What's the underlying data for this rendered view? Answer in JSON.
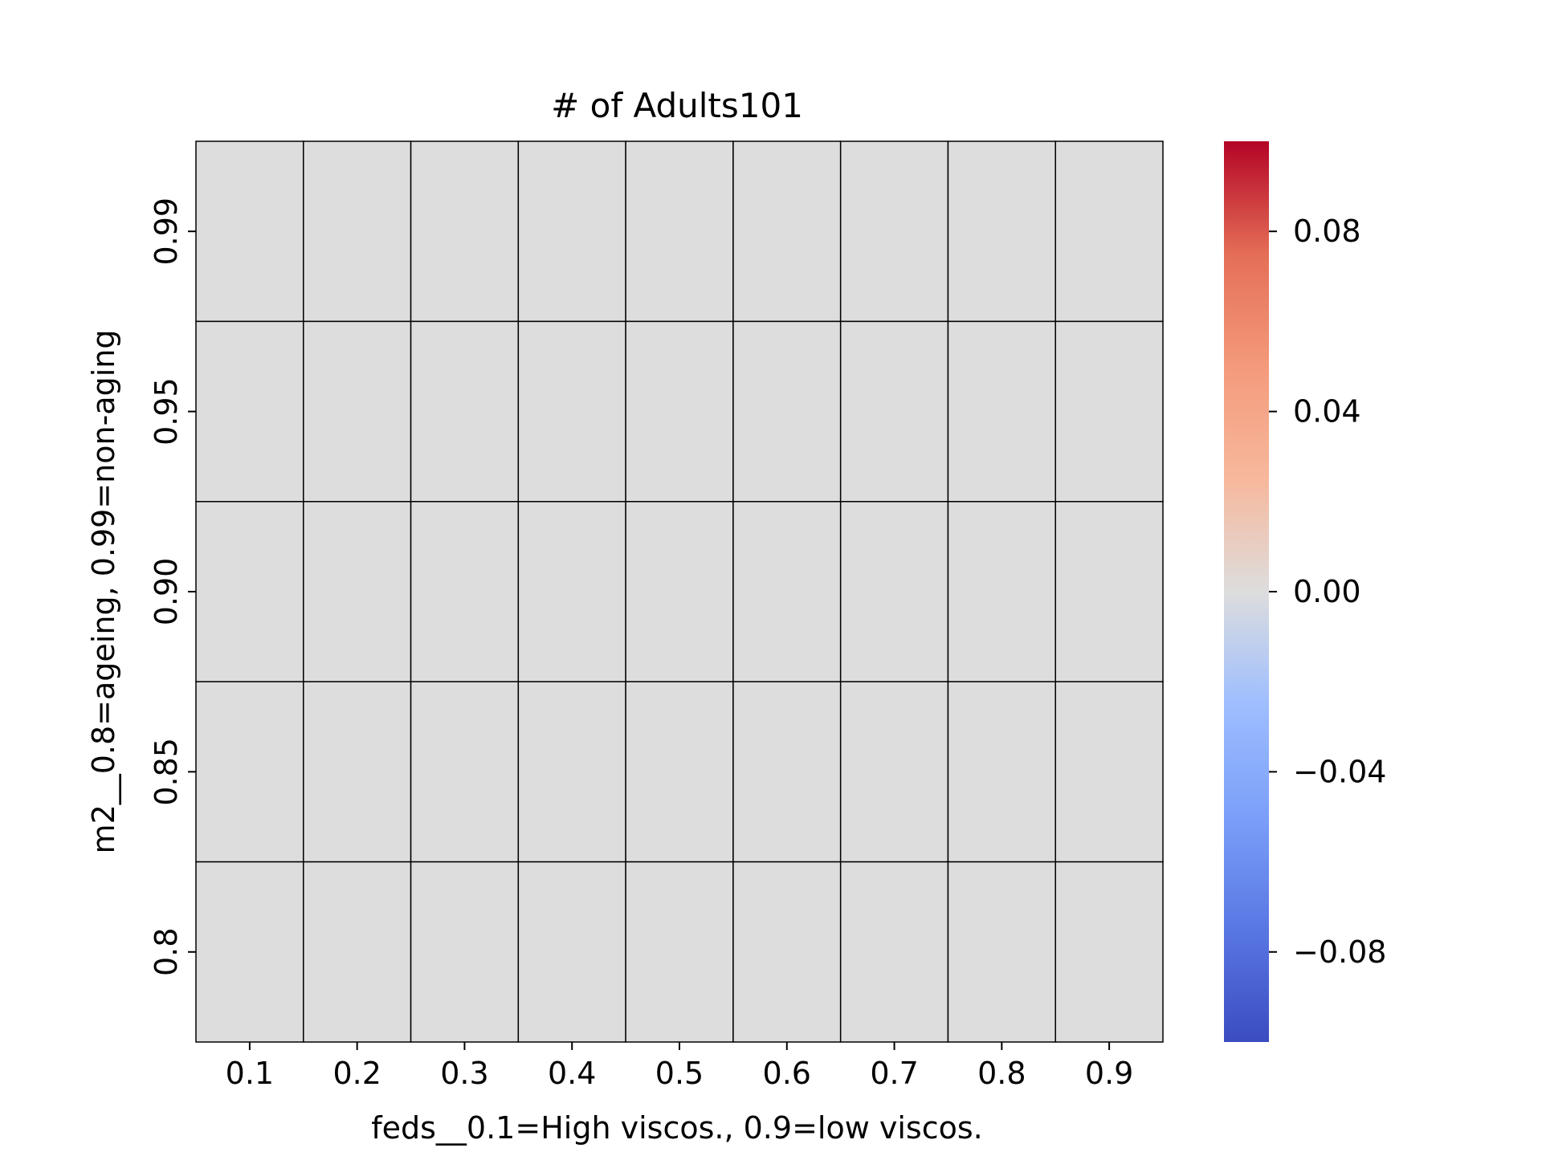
{
  "chart_data": {
    "type": "heatmap",
    "title": "# of Adults101",
    "xlabel": "feds__0.1=High viscos., 0.9=low viscos.",
    "ylabel": "m2__0.8=ageing, 0.99=non-aging",
    "x_categories": [
      "0.1",
      "0.2",
      "0.3",
      "0.4",
      "0.5",
      "0.6",
      "0.7",
      "0.8",
      "0.9"
    ],
    "y_categories": [
      "0.99",
      "0.95",
      "0.90",
      "0.85",
      "0.8"
    ],
    "values": [
      [
        0,
        0,
        0,
        0,
        0,
        0,
        0,
        0,
        0
      ],
      [
        0,
        0,
        0,
        0,
        0,
        0,
        0,
        0,
        0
      ],
      [
        0,
        0,
        0,
        0,
        0,
        0,
        0,
        0,
        0
      ],
      [
        0,
        0,
        0,
        0,
        0,
        0,
        0,
        0,
        0
      ],
      [
        0,
        0,
        0,
        0,
        0,
        0,
        0,
        0,
        0
      ]
    ],
    "colorbar": {
      "colormap": "coolwarm",
      "range": [
        -0.1,
        0.1
      ],
      "ticks": [
        0.08,
        0.04,
        0.0,
        -0.04,
        -0.08
      ],
      "tick_labels": [
        "0.08",
        "0.04",
        "0.00",
        "−0.04",
        "−0.08"
      ]
    },
    "cell_color": "#dddddd",
    "grid_line_color": "#000000"
  }
}
